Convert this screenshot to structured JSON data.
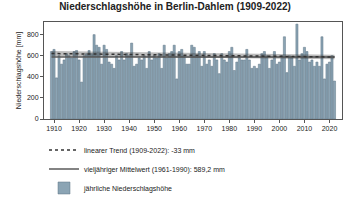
{
  "chart_data": {
    "type": "bar",
    "title": "Niederschlagshöhe in Berlin-Dahlem (1909-2022)",
    "y_label": "Niederschlagshöhe [mm]",
    "x": [
      1909,
      1910,
      1911,
      1912,
      1913,
      1914,
      1915,
      1916,
      1917,
      1918,
      1919,
      1920,
      1921,
      1922,
      1923,
      1924,
      1925,
      1926,
      1927,
      1928,
      1929,
      1930,
      1931,
      1932,
      1933,
      1934,
      1935,
      1936,
      1937,
      1938,
      1939,
      1940,
      1941,
      1942,
      1943,
      1944,
      1945,
      1946,
      1947,
      1948,
      1949,
      1950,
      1951,
      1952,
      1953,
      1954,
      1955,
      1956,
      1957,
      1958,
      1959,
      1960,
      1961,
      1962,
      1963,
      1964,
      1965,
      1966,
      1967,
      1968,
      1969,
      1970,
      1971,
      1972,
      1973,
      1974,
      1975,
      1976,
      1977,
      1978,
      1979,
      1980,
      1981,
      1982,
      1983,
      1984,
      1985,
      1986,
      1987,
      1988,
      1989,
      1990,
      1991,
      1992,
      1993,
      1994,
      1995,
      1996,
      1997,
      1998,
      1999,
      2000,
      2001,
      2002,
      2003,
      2004,
      2005,
      2006,
      2007,
      2008,
      2009,
      2010,
      2011,
      2012,
      2013,
      2014,
      2015,
      2016,
      2017,
      2018,
      2019,
      2020,
      2021,
      2022
    ],
    "series": [
      {
        "name": "jährliche Niederschlagshöhe",
        "type": "bar",
        "color": "#8ba4b4",
        "values": [
          640,
          660,
          390,
          600,
          520,
          560,
          620,
          600,
          580,
          640,
          650,
          560,
          350,
          600,
          620,
          650,
          620,
          800,
          700,
          680,
          520,
          700,
          660,
          540,
          520,
          480,
          600,
          560,
          640,
          560,
          620,
          600,
          720,
          500,
          520,
          580,
          560,
          600,
          480,
          640,
          560,
          600,
          580,
          620,
          480,
          700,
          580,
          620,
          640,
          700,
          380,
          640,
          660,
          600,
          520,
          520,
          700,
          680,
          600,
          640,
          500,
          640,
          520,
          560,
          500,
          620,
          560,
          430,
          620,
          560,
          540,
          640,
          680,
          460,
          540,
          580,
          560,
          560,
          660,
          560,
          480,
          500,
          480,
          520,
          620,
          640,
          600,
          480,
          560,
          640,
          520,
          540,
          600,
          780,
          440,
          600,
          580,
          500,
          900,
          560,
          620,
          680,
          640,
          540,
          560,
          500,
          540,
          500,
          780,
          380,
          520,
          540,
          600,
          360
        ]
      },
      {
        "name": "vieljähriger Mittelwert (1961-1990): 589,2 mm",
        "type": "line",
        "line_style": "solid",
        "color": "#5a5a5a",
        "x": [
          1909,
          2022
        ],
        "values": [
          589.2,
          589.2
        ]
      },
      {
        "name": "linearer Trend (1909-2022): -33 mm",
        "type": "line",
        "line_style": "dotted",
        "color": "#333333",
        "x": [
          1909,
          2022
        ],
        "values": [
          621,
          588
        ],
        "band_lower": [
          596,
          566
        ],
        "band_upper": [
          646,
          610
        ]
      }
    ],
    "xlim": [
      1906,
      2025
    ],
    "xticks": [
      1910,
      1920,
      1930,
      1940,
      1950,
      1960,
      1970,
      1980,
      1990,
      2000,
      2010,
      2020
    ],
    "ylim": [
      0,
      920
    ],
    "yticks": [
      0,
      200,
      400,
      600,
      800
    ],
    "grid": false,
    "legend": "bottom"
  }
}
